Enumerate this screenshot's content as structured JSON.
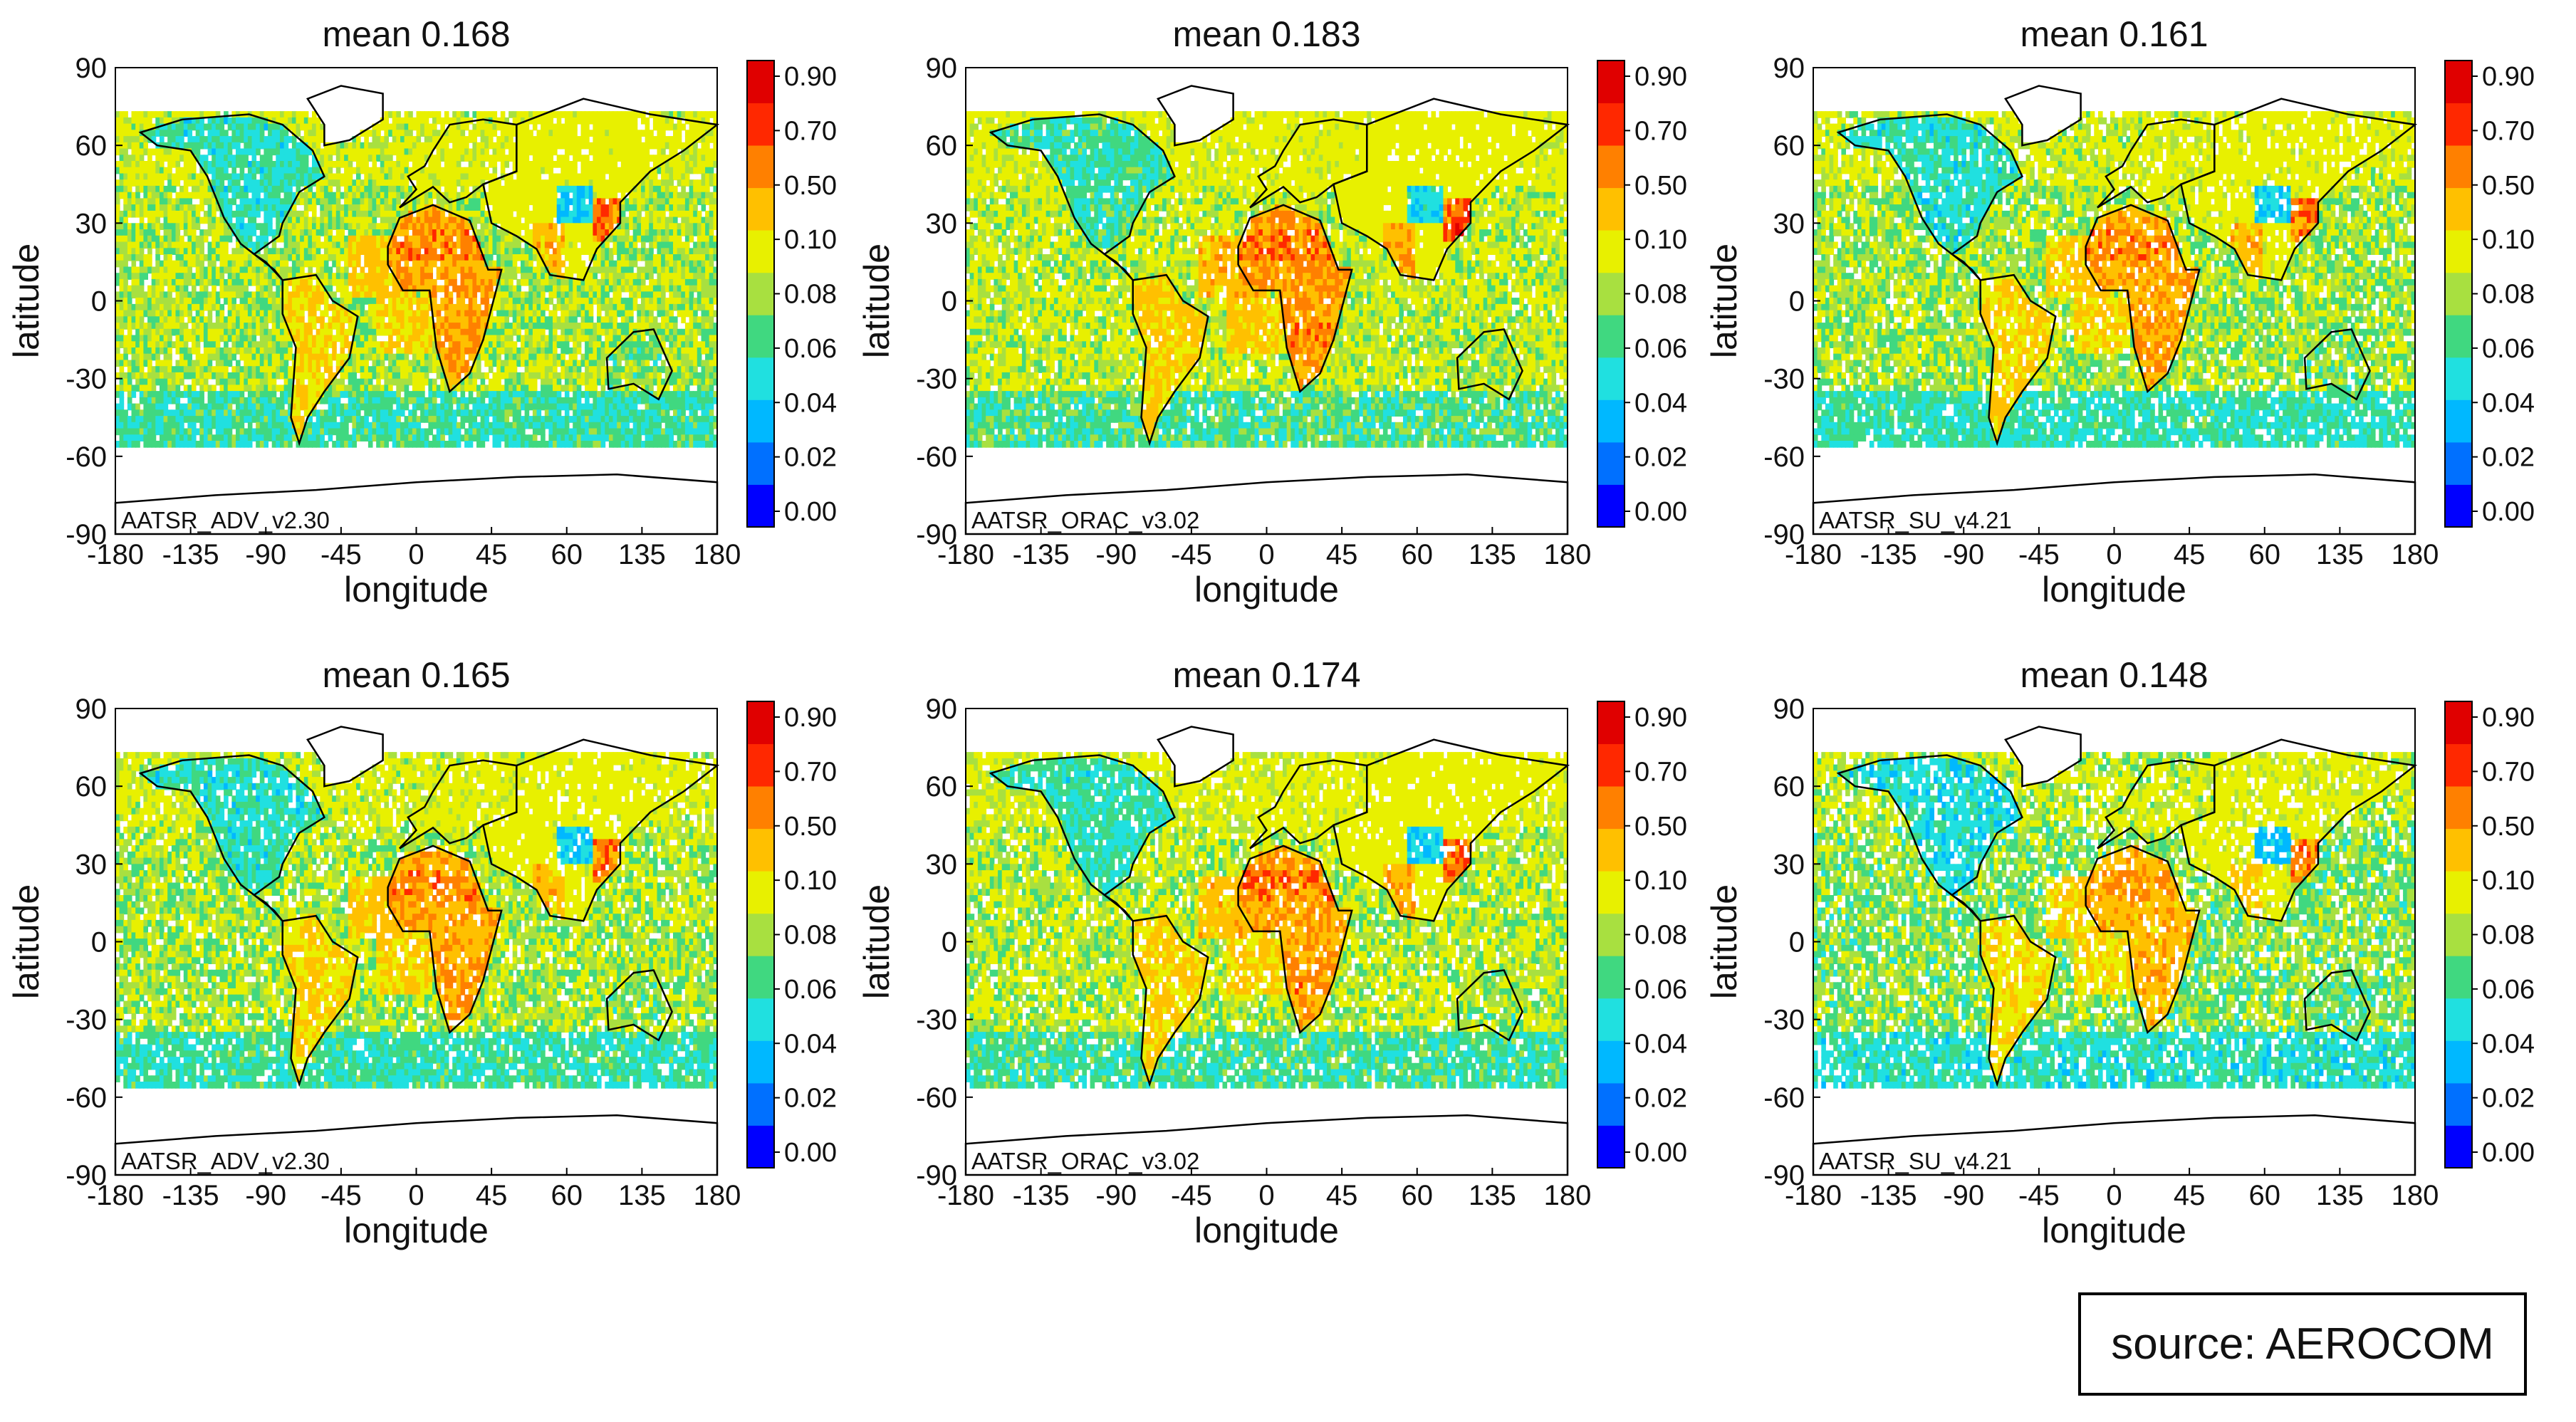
{
  "figure": {
    "source_label": "source: AEROCOM",
    "colors": {
      "palette": [
        "#0000ff",
        "#0070ff",
        "#00b8ff",
        "#20e0e0",
        "#40d880",
        "#a8e040",
        "#e8f000",
        "#ffc000",
        "#ff8000",
        "#ff2800",
        "#e00000"
      ],
      "coastline": "#000000",
      "no_data": "#ffffff"
    }
  },
  "chart_data": [
    {
      "type": "heatmap",
      "title": "mean 0.168",
      "mean": 0.168,
      "product_label": "AATSR_ADV_v2.30",
      "xlabel": "longitude",
      "ylabel": "latitude",
      "xlim": [
        -180,
        180
      ],
      "ylim": [
        -90,
        90
      ],
      "x_ticks": [
        "-180",
        "-135",
        "-90",
        "-45",
        "0",
        "45",
        "60",
        "135",
        "180"
      ],
      "y_ticks": [
        "90",
        "60",
        "30",
        "0",
        "-30",
        "-60",
        "-90"
      ],
      "colorbar_ticks": [
        "0.90",
        "0.70",
        "0.50",
        "0.10",
        "0.08",
        "0.06",
        "0.04",
        "0.02",
        "0.00"
      ],
      "grid": false
    },
    {
      "type": "heatmap",
      "title": "mean 0.183",
      "mean": 0.183,
      "product_label": "AATSR_ORAC_v3.02",
      "xlabel": "longitude",
      "ylabel": "latitude",
      "xlim": [
        -180,
        180
      ],
      "ylim": [
        -90,
        90
      ],
      "x_ticks": [
        "-180",
        "-135",
        "-90",
        "-45",
        "0",
        "45",
        "60",
        "135",
        "180"
      ],
      "y_ticks": [
        "90",
        "60",
        "30",
        "0",
        "-30",
        "-60",
        "-90"
      ],
      "colorbar_ticks": [
        "0.90",
        "0.70",
        "0.50",
        "0.10",
        "0.08",
        "0.06",
        "0.04",
        "0.02",
        "0.00"
      ],
      "grid": false
    },
    {
      "type": "heatmap",
      "title": "mean 0.161",
      "mean": 0.161,
      "product_label": "AATSR_SU_v4.21",
      "xlabel": "longitude",
      "ylabel": "latitude",
      "xlim": [
        -180,
        180
      ],
      "ylim": [
        -90,
        90
      ],
      "x_ticks": [
        "-180",
        "-135",
        "-90",
        "-45",
        "0",
        "45",
        "60",
        "135",
        "180"
      ],
      "y_ticks": [
        "90",
        "60",
        "30",
        "0",
        "-30",
        "-60",
        "-90"
      ],
      "colorbar_ticks": [
        "0.90",
        "0.70",
        "0.50",
        "0.10",
        "0.08",
        "0.06",
        "0.04",
        "0.02",
        "0.00"
      ],
      "grid": false
    },
    {
      "type": "heatmap",
      "title": "mean 0.165",
      "mean": 0.165,
      "product_label": "AATSR_ADV_v2.30",
      "xlabel": "longitude",
      "ylabel": "latitude",
      "xlim": [
        -180,
        180
      ],
      "ylim": [
        -90,
        90
      ],
      "x_ticks": [
        "-180",
        "-135",
        "-90",
        "-45",
        "0",
        "45",
        "60",
        "135",
        "180"
      ],
      "y_ticks": [
        "90",
        "60",
        "30",
        "0",
        "-30",
        "-60",
        "-90"
      ],
      "colorbar_ticks": [
        "0.90",
        "0.70",
        "0.50",
        "0.10",
        "0.08",
        "0.06",
        "0.04",
        "0.02",
        "0.00"
      ],
      "grid": false
    },
    {
      "type": "heatmap",
      "title": "mean 0.174",
      "mean": 0.174,
      "product_label": "AATSR_ORAC_v3.02",
      "xlabel": "longitude",
      "ylabel": "latitude",
      "xlim": [
        -180,
        180
      ],
      "ylim": [
        -90,
        90
      ],
      "x_ticks": [
        "-180",
        "-135",
        "-90",
        "-45",
        "0",
        "45",
        "60",
        "135",
        "180"
      ],
      "y_ticks": [
        "90",
        "60",
        "30",
        "0",
        "-30",
        "-60",
        "-90"
      ],
      "colorbar_ticks": [
        "0.90",
        "0.70",
        "0.50",
        "0.10",
        "0.08",
        "0.06",
        "0.04",
        "0.02",
        "0.00"
      ],
      "grid": false
    },
    {
      "type": "heatmap",
      "title": "mean 0.148",
      "mean": 0.148,
      "product_label": "AATSR_SU_v4.21",
      "xlabel": "longitude",
      "ylabel": "latitude",
      "xlim": [
        -180,
        180
      ],
      "ylim": [
        -90,
        90
      ],
      "x_ticks": [
        "-180",
        "-135",
        "-90",
        "-45",
        "0",
        "45",
        "60",
        "135",
        "180"
      ],
      "y_ticks": [
        "90",
        "60",
        "30",
        "0",
        "-30",
        "-60",
        "-90"
      ],
      "colorbar_ticks": [
        "0.90",
        "0.70",
        "0.50",
        "0.10",
        "0.08",
        "0.06",
        "0.04",
        "0.02",
        "0.00"
      ],
      "grid": false
    }
  ]
}
